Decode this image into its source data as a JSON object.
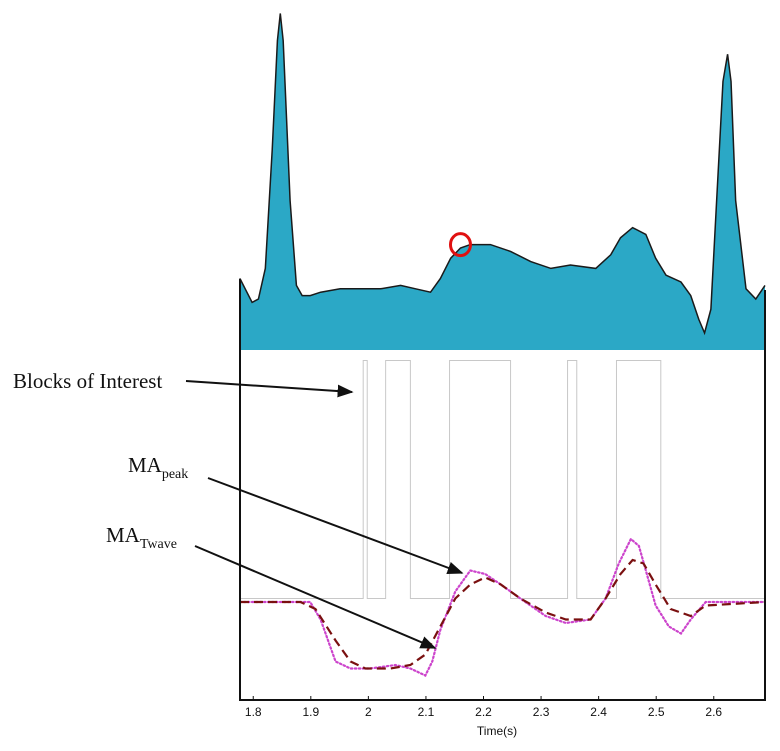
{
  "chart_data": [
    {
      "type": "area",
      "color": "#2ba8c6",
      "stroke": "#1a1a1a",
      "ylim": [
        0,
        1
      ],
      "xlim": [
        1.777,
        2.689
      ],
      "marker": {
        "x": 2.16,
        "y": 0.31,
        "color": "#e01010"
      },
      "series": [
        {
          "x": [
            1.777,
            1.786,
            1.798,
            1.809,
            1.821,
            1.833,
            1.842,
            1.847,
            1.852,
            1.864,
            1.875,
            1.885,
            1.899,
            1.917,
            1.951,
            1.986,
            2.021,
            2.056,
            2.082,
            2.108,
            2.125,
            2.143,
            2.16,
            2.177,
            2.212,
            2.247,
            2.282,
            2.317,
            2.351,
            2.395,
            2.421,
            2.438,
            2.459,
            2.482,
            2.499,
            2.517,
            2.543,
            2.56,
            2.574,
            2.584,
            2.595,
            2.605,
            2.616,
            2.624,
            2.63,
            2.638,
            2.656,
            2.673,
            2.685,
            2.689
          ],
          "values": [
            0.21,
            0.18,
            0.14,
            0.15,
            0.24,
            0.59,
            0.91,
            0.99,
            0.91,
            0.44,
            0.19,
            0.16,
            0.16,
            0.17,
            0.18,
            0.18,
            0.18,
            0.19,
            0.18,
            0.17,
            0.21,
            0.27,
            0.3,
            0.31,
            0.31,
            0.29,
            0.26,
            0.24,
            0.25,
            0.24,
            0.28,
            0.33,
            0.36,
            0.34,
            0.27,
            0.22,
            0.2,
            0.16,
            0.09,
            0.05,
            0.12,
            0.44,
            0.79,
            0.87,
            0.79,
            0.44,
            0.18,
            0.15,
            0.18,
            0.19
          ]
        }
      ]
    },
    {
      "type": "line",
      "ylim": [
        0,
        1
      ],
      "xlim": [
        1.777,
        2.689
      ],
      "x_label": "Time(s)",
      "xticks": [
        1.8,
        1.9,
        2,
        2.1,
        2.2,
        2.3,
        2.4,
        2.5,
        2.6
      ],
      "series": [
        {
          "color": "#c8c8c8",
          "style": "solid",
          "x": [
            1.777,
            1.991,
            1.991,
            1.998,
            1.998,
            2.03,
            2.03,
            2.073,
            2.073,
            2.141,
            2.141,
            2.247,
            2.247,
            2.346,
            2.346,
            2.362,
            2.362,
            2.431,
            2.431,
            2.508,
            2.508,
            2.689
          ],
          "values": [
            0.29,
            0.29,
            0.97,
            0.97,
            0.29,
            0.29,
            0.97,
            0.97,
            0.29,
            0.29,
            0.97,
            0.97,
            0.29,
            0.29,
            0.97,
            0.97,
            0.29,
            0.29,
            0.97,
            0.97,
            0.29,
            0.29
          ]
        },
        {
          "color": "#cc44cc",
          "style": "dotted",
          "x": [
            1.777,
            1.899,
            1.917,
            1.943,
            1.969,
            2.003,
            2.047,
            2.073,
            2.099,
            2.111,
            2.125,
            2.151,
            2.177,
            2.203,
            2.23,
            2.264,
            2.308,
            2.343,
            2.386,
            2.412,
            2.435,
            2.456,
            2.47,
            2.482,
            2.499,
            2.522,
            2.543,
            2.56,
            2.586,
            2.689
          ],
          "values": [
            0.28,
            0.28,
            0.23,
            0.11,
            0.09,
            0.09,
            0.1,
            0.09,
            0.07,
            0.11,
            0.2,
            0.31,
            0.37,
            0.36,
            0.33,
            0.29,
            0.24,
            0.22,
            0.23,
            0.29,
            0.39,
            0.46,
            0.44,
            0.37,
            0.27,
            0.21,
            0.19,
            0.23,
            0.28,
            0.28
          ]
        },
        {
          "color": "#7a1010",
          "style": "dashed",
          "x": [
            1.777,
            1.882,
            1.908,
            1.943,
            1.969,
            1.995,
            2.038,
            2.073,
            2.099,
            2.125,
            2.151,
            2.177,
            2.203,
            2.23,
            2.264,
            2.308,
            2.343,
            2.386,
            2.412,
            2.438,
            2.459,
            2.478,
            2.499,
            2.525,
            2.56,
            2.586,
            2.689
          ],
          "values": [
            0.28,
            0.28,
            0.26,
            0.17,
            0.11,
            0.09,
            0.09,
            0.1,
            0.13,
            0.21,
            0.29,
            0.33,
            0.35,
            0.33,
            0.29,
            0.25,
            0.23,
            0.23,
            0.29,
            0.36,
            0.4,
            0.39,
            0.33,
            0.26,
            0.24,
            0.27,
            0.28
          ]
        }
      ],
      "annotations": [
        {
          "text": "Blocks of Interest"
        },
        {
          "text": "MA",
          "sub": "peak"
        },
        {
          "text": "MA",
          "sub": "Twave"
        }
      ]
    }
  ]
}
